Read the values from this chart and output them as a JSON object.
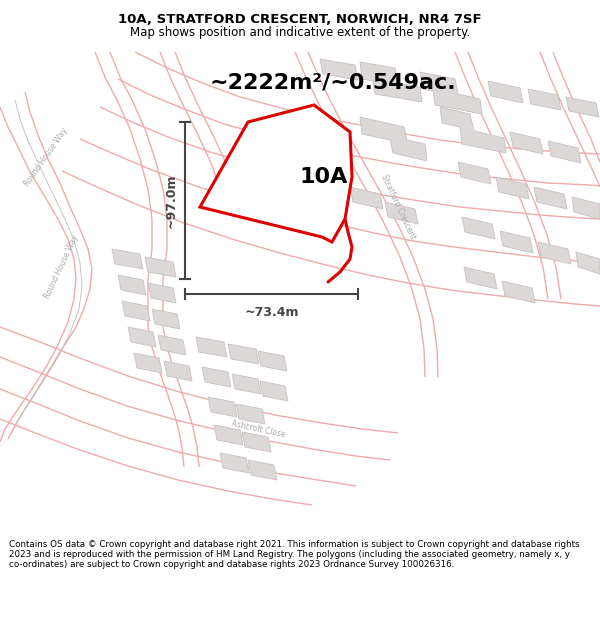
{
  "title_line1": "10A, STRATFORD CRESCENT, NORWICH, NR4 7SF",
  "title_line2": "Map shows position and indicative extent of the property.",
  "area_text": "~2222m²/~0.549ac.",
  "dim_height": "~97.0m",
  "dim_width": "~73.4m",
  "label_10A": "10A",
  "footer_text": "Contains OS data © Crown copyright and database right 2021. This information is subject to Crown copyright and database rights 2023 and is reproduced with the permission of HM Land Registry. The polygons (including the associated geometry, namely x, y co-ordinates) are subject to Crown copyright and database rights 2023 Ordnance Survey 100026316.",
  "map_bg": "#ffffff",
  "red_color": "#dd0000",
  "road_outline_color": "#f0aaaa",
  "road_fill_color": "#f8f0f0",
  "building_fill": "#ddd8d8",
  "building_edge": "#c8c0c0",
  "dim_color": "#444444",
  "road_label_color": "#aaaaaa",
  "title_fontsize": 9.5,
  "subtitle_fontsize": 8.5,
  "area_fontsize": 16,
  "dim_fontsize": 9,
  "label_fontsize": 16,
  "footer_fontsize": 6.3
}
